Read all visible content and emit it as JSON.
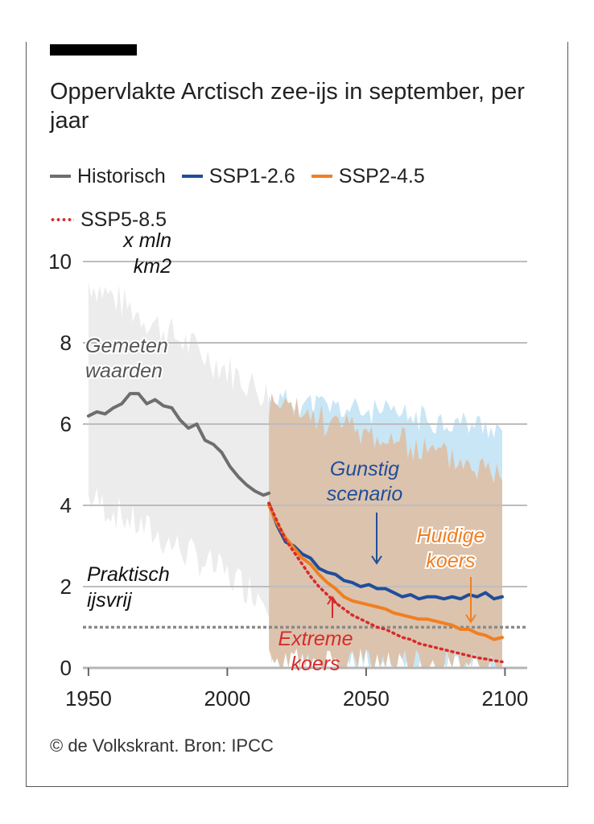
{
  "title": "Oppervlakte Arctisch zee-ijs in september, per jaar",
  "source": "© de Volkskrant. Bron: IPCC",
  "colors": {
    "historical": "#6e6e6e",
    "ssp126": "#1f4e9a",
    "ssp245": "#f07f22",
    "ssp585": "#d62b2b",
    "hist_range": "#ececec",
    "ssp126_range": "#c8e6f5",
    "ssp245_range": "#dcc3ad"
  },
  "chart_data": {
    "type": "line",
    "title": "Oppervlakte Arctisch zee-ijs in september, per jaar",
    "unit_label": [
      "x mln",
      "km2"
    ],
    "x_ticks": [
      1950,
      2000,
      2050,
      2100
    ],
    "y_ticks": [
      0,
      2,
      4,
      6,
      8,
      10
    ],
    "xlim": [
      1948,
      2108
    ],
    "ylim": [
      0,
      10
    ],
    "grid": "horizontal",
    "legend_position": "top",
    "series": [
      {
        "name": "Historisch",
        "style": "solid",
        "x": [
          1950,
          1953,
          1956,
          1959,
          1962,
          1965,
          1968,
          1971,
          1974,
          1977,
          1980,
          1983,
          1986,
          1989,
          1992,
          1995,
          1998,
          2001,
          2004,
          2007,
          2010,
          2013,
          2015
        ],
        "y": [
          6.2,
          6.3,
          6.25,
          6.4,
          6.5,
          6.75,
          6.75,
          6.5,
          6.6,
          6.45,
          6.4,
          6.1,
          5.9,
          6.0,
          5.6,
          5.5,
          5.3,
          4.95,
          4.7,
          4.5,
          4.35,
          4.25,
          4.3
        ]
      },
      {
        "name": "SSP1-2.6",
        "style": "solid",
        "x": [
          2015,
          2018,
          2021,
          2024,
          2027,
          2030,
          2033,
          2036,
          2039,
          2042,
          2045,
          2048,
          2051,
          2054,
          2057,
          2060,
          2063,
          2066,
          2069,
          2072,
          2075,
          2078,
          2081,
          2084,
          2087,
          2090,
          2093,
          2096,
          2099
        ],
        "y": [
          4.05,
          3.5,
          3.1,
          3.0,
          2.8,
          2.7,
          2.45,
          2.35,
          2.3,
          2.15,
          2.1,
          2.0,
          2.05,
          1.95,
          1.95,
          1.85,
          1.75,
          1.8,
          1.7,
          1.75,
          1.75,
          1.7,
          1.75,
          1.7,
          1.8,
          1.75,
          1.85,
          1.7,
          1.75
        ]
      },
      {
        "name": "SSP2-4.5",
        "style": "solid",
        "x": [
          2015,
          2018,
          2021,
          2024,
          2027,
          2030,
          2033,
          2036,
          2039,
          2042,
          2045,
          2048,
          2051,
          2054,
          2057,
          2060,
          2063,
          2066,
          2069,
          2072,
          2075,
          2078,
          2081,
          2084,
          2087,
          2090,
          2093,
          2096,
          2099
        ],
        "y": [
          4.0,
          3.55,
          3.2,
          2.95,
          2.7,
          2.55,
          2.3,
          2.1,
          1.95,
          1.75,
          1.65,
          1.6,
          1.55,
          1.5,
          1.45,
          1.35,
          1.3,
          1.25,
          1.2,
          1.2,
          1.15,
          1.1,
          1.05,
          0.95,
          0.95,
          0.85,
          0.8,
          0.7,
          0.75
        ]
      },
      {
        "name": "SSP5-8.5",
        "style": "dotted",
        "x": [
          2015,
          2018,
          2021,
          2024,
          2027,
          2030,
          2033,
          2036,
          2039,
          2042,
          2045,
          2048,
          2051,
          2054,
          2057,
          2060,
          2063,
          2066,
          2069,
          2072,
          2075,
          2078,
          2081,
          2084,
          2087,
          2090,
          2093,
          2096,
          2099
        ],
        "y": [
          4.05,
          3.6,
          3.15,
          2.85,
          2.55,
          2.25,
          2.0,
          1.8,
          1.6,
          1.45,
          1.3,
          1.2,
          1.1,
          1.0,
          0.95,
          0.85,
          0.75,
          0.7,
          0.6,
          0.55,
          0.5,
          0.45,
          0.4,
          0.35,
          0.3,
          0.25,
          0.22,
          0.18,
          0.15
        ]
      }
    ],
    "threshold": {
      "label": [
        "Praktisch",
        "ijsvrij"
      ],
      "value": 1.0
    },
    "annotations": [
      {
        "name": "gemeten",
        "lines": [
          "Gemeten",
          "waarden"
        ],
        "x": 1950,
        "y": 7.55
      },
      {
        "name": "gunstig",
        "lines": [
          "Gunstig",
          "scenario"
        ],
        "x": 2051,
        "y": 4.8
      },
      {
        "name": "huidige",
        "lines": [
          "Huidige",
          "koers"
        ],
        "x": 2083,
        "y": 3.0
      },
      {
        "name": "extreme",
        "lines": [
          "Extreme",
          "koers"
        ],
        "x": 2031,
        "y": 0.55
      }
    ]
  }
}
